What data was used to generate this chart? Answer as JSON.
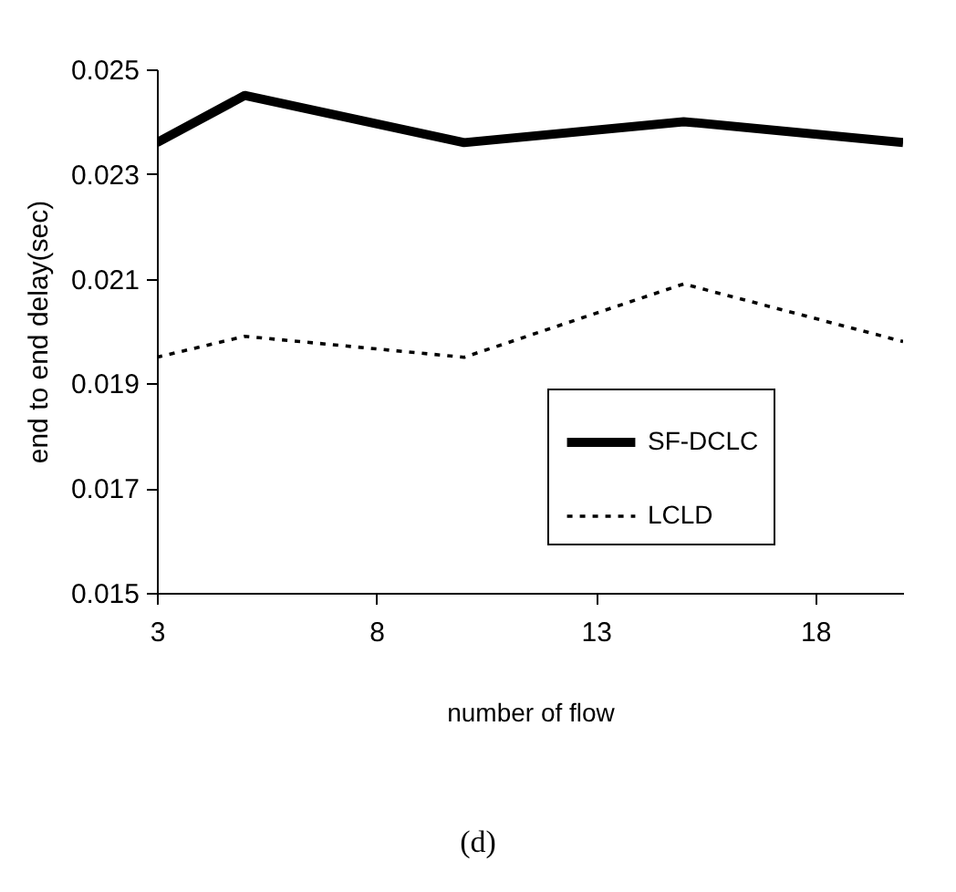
{
  "chart_data": {
    "type": "line",
    "xlabel": "number of  flow",
    "ylabel": "end to end delay(sec)",
    "x": [
      3,
      5,
      10,
      15,
      20
    ],
    "series": [
      {
        "name": "SF-DCLC",
        "color": "#000000",
        "line_style": "solid",
        "values": [
          0.0236,
          0.0245,
          0.0236,
          0.024,
          0.0236
        ]
      },
      {
        "name": "LCLD",
        "color": "#000000",
        "line_style": "dotted",
        "values": [
          0.0195,
          0.0199,
          0.0195,
          0.0209,
          0.0198
        ]
      }
    ],
    "xlim": [
      3,
      20
    ],
    "xticks": [
      3,
      8,
      13,
      18
    ],
    "ylim": [
      0.015,
      0.025
    ],
    "yticks": [
      0.015,
      0.017,
      0.019,
      0.021,
      0.023,
      0.025
    ],
    "grid": false,
    "legend": "right",
    "marker": "none",
    "annotations": [
      "(d)"
    ]
  }
}
